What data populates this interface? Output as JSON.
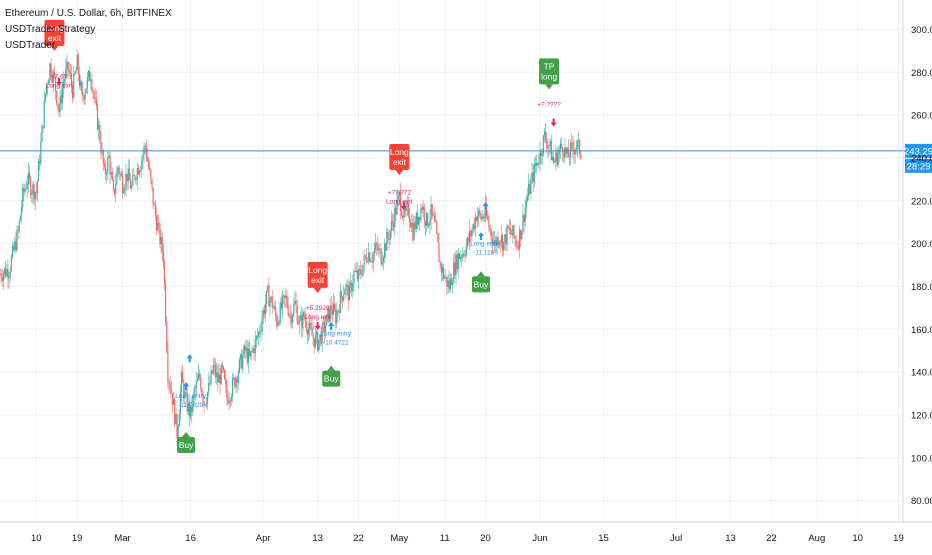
{
  "legend": {
    "symbol": "Ethereum / U.S. Dollar, 6h, BITFINEX",
    "strategy": "USDTrader Strategy",
    "indicator": "USDTrader"
  },
  "colors": {
    "up": "#26a69a",
    "down": "#ef5350",
    "price_line": "#2196f3",
    "buy_label": "#43a047",
    "exit_label": "#f44336",
    "entry_text": "#2196f3",
    "exit_text": "#e91e63",
    "grid": "#eef0f3",
    "axis_text": "#131722"
  },
  "price_labels": {
    "last_price": "243.29",
    "countdown": "28:29"
  },
  "chart_data": {
    "type": "candlestick",
    "y_axis": {
      "min": 70,
      "max": 310,
      "ticks": [
        "80.00",
        "100.00",
        "120.00",
        "140.00",
        "160.00",
        "180.00",
        "200.00",
        "220.00",
        "240.00",
        "260.00",
        "280.00",
        "300.00"
      ]
    },
    "x_axis": {
      "ticks": [
        {
          "label": "10",
          "t": 10
        },
        {
          "label": "19",
          "t": 19
        },
        {
          "label": "Mar",
          "t": 29
        },
        {
          "label": "16",
          "t": 44
        },
        {
          "label": "Apr",
          "t": 60
        },
        {
          "label": "13",
          "t": 72
        },
        {
          "label": "22",
          "t": 81
        },
        {
          "label": "May",
          "t": 90
        },
        {
          "label": "11",
          "t": 100
        },
        {
          "label": "20",
          "t": 109
        },
        {
          "label": "Jun",
          "t": 121
        },
        {
          "label": "15",
          "t": 135
        },
        {
          "label": "Jul",
          "t": 151
        },
        {
          "label": "13",
          "t": 163
        },
        {
          "label": "22",
          "t": 172
        },
        {
          "label": "Aug",
          "t": 182
        },
        {
          "label": "10",
          "t": 191
        },
        {
          "label": "19",
          "t": 200
        }
      ],
      "range": [
        2,
        201
      ]
    },
    "last_price": 243.29,
    "price_path": [
      [
        2,
        186
      ],
      [
        4,
        188
      ],
      [
        6,
        205
      ],
      [
        7,
        222
      ],
      [
        8,
        230
      ],
      [
        9,
        226
      ],
      [
        10,
        224
      ],
      [
        11,
        246
      ],
      [
        12,
        270
      ],
      [
        13,
        283
      ],
      [
        14,
        276
      ],
      [
        15,
        262
      ],
      [
        16,
        276
      ],
      [
        17,
        282
      ],
      [
        18,
        272
      ],
      [
        19,
        284
      ],
      [
        20,
        268
      ],
      [
        21,
        274
      ],
      [
        22,
        280
      ],
      [
        23,
        264
      ],
      [
        24,
        250
      ],
      [
        25,
        232
      ],
      [
        26,
        240
      ],
      [
        27,
        222
      ],
      [
        28,
        236
      ],
      [
        29,
        228
      ],
      [
        30,
        232
      ],
      [
        31,
        226
      ],
      [
        32,
        234
      ],
      [
        33,
        238
      ],
      [
        34,
        246
      ],
      [
        35,
        232
      ],
      [
        36,
        216
      ],
      [
        37,
        205
      ],
      [
        38,
        194
      ],
      [
        39,
        140
      ],
      [
        40,
        128
      ],
      [
        41,
        112
      ],
      [
        42,
        136
      ],
      [
        43,
        126
      ],
      [
        44,
        120
      ],
      [
        45,
        132
      ],
      [
        46,
        138
      ],
      [
        47,
        126
      ],
      [
        48,
        132
      ],
      [
        49,
        142
      ],
      [
        50,
        136
      ],
      [
        51,
        140
      ],
      [
        52,
        128
      ],
      [
        53,
        132
      ],
      [
        54,
        138
      ],
      [
        55,
        144
      ],
      [
        56,
        150
      ],
      [
        57,
        146
      ],
      [
        58,
        152
      ],
      [
        59,
        158
      ],
      [
        60,
        168
      ],
      [
        61,
        176
      ],
      [
        62,
        172
      ],
      [
        63,
        164
      ],
      [
        64,
        170
      ],
      [
        65,
        174
      ],
      [
        66,
        166
      ],
      [
        67,
        172
      ],
      [
        68,
        162
      ],
      [
        69,
        166
      ],
      [
        70,
        160
      ],
      [
        71,
        156
      ],
      [
        72,
        154
      ],
      [
        73,
        158
      ],
      [
        74,
        164
      ],
      [
        75,
        170
      ],
      [
        76,
        166
      ],
      [
        77,
        174
      ],
      [
        78,
        180
      ],
      [
        79,
        176
      ],
      [
        80,
        186
      ],
      [
        81,
        184
      ],
      [
        82,
        190
      ],
      [
        83,
        196
      ],
      [
        84,
        194
      ],
      [
        85,
        198
      ],
      [
        86,
        194
      ],
      [
        87,
        200
      ],
      [
        88,
        206
      ],
      [
        89,
        214
      ],
      [
        90,
        222
      ],
      [
        91,
        212
      ],
      [
        92,
        216
      ],
      [
        93,
        206
      ],
      [
        94,
        212
      ],
      [
        95,
        218
      ],
      [
        96,
        210
      ],
      [
        97,
        214
      ],
      [
        98,
        206
      ],
      [
        99,
        190
      ],
      [
        100,
        184
      ],
      [
        101,
        180
      ],
      [
        102,
        188
      ],
      [
        103,
        194
      ],
      [
        104,
        196
      ],
      [
        105,
        200
      ],
      [
        106,
        206
      ],
      [
        107,
        214
      ],
      [
        108,
        212
      ],
      [
        109,
        214
      ],
      [
        110,
        206
      ],
      [
        111,
        200
      ],
      [
        112,
        204
      ],
      [
        113,
        200
      ],
      [
        114,
        206
      ],
      [
        115,
        204
      ],
      [
        116,
        200
      ],
      [
        117,
        208
      ],
      [
        118,
        220
      ],
      [
        119,
        228
      ],
      [
        120,
        236
      ],
      [
        121,
        242
      ],
      [
        122,
        250
      ],
      [
        123,
        246
      ],
      [
        124,
        238
      ],
      [
        125,
        242
      ],
      [
        126,
        246
      ],
      [
        127,
        240
      ],
      [
        128,
        244
      ],
      [
        129,
        246
      ],
      [
        130,
        243
      ]
    ],
    "entry_arrows": [
      {
        "t": 43,
        "price": 133
      },
      {
        "t": 43.8,
        "price": 146
      },
      {
        "t": 75,
        "price": 161
      },
      {
        "t": 108,
        "price": 203
      },
      {
        "t": 109,
        "price": 217
      }
    ],
    "exit_arrows": [
      {
        "t": 15,
        "price": 276
      },
      {
        "t": 72,
        "price": 162
      },
      {
        "t": 91,
        "price": 218
      },
      {
        "t": 124,
        "price": 257
      }
    ],
    "signals": [
      {
        "type": "buy",
        "text": "Buy",
        "t": 43,
        "price": 112,
        "placement": "below"
      },
      {
        "type": "buy",
        "text": "Buy",
        "t": 75,
        "price": 143,
        "placement": "below"
      },
      {
        "type": "buy",
        "text": "Buy",
        "t": 108,
        "price": 187,
        "placement": "below"
      },
      {
        "type": "exit",
        "text": "Long exit",
        "t": 14,
        "price": 290,
        "placement": "above"
      },
      {
        "type": "exit",
        "text": "Long exit",
        "t": 72,
        "price": 177,
        "placement": "above"
      },
      {
        "type": "exit",
        "text": "Long exit",
        "t": 90,
        "price": 232,
        "placement": "above"
      },
      {
        "type": "tp",
        "text": "TP long",
        "t": 123,
        "price": 272,
        "placement": "above"
      }
    ],
    "annotations": [
      {
        "kind": "exit",
        "lines": [
          "+7.6?",
          "Long exit"
        ],
        "t": 15,
        "price": 277
      },
      {
        "kind": "exit",
        "lines": [
          "+5.2929",
          "Long exit"
        ],
        "t": 72,
        "price": 169
      },
      {
        "kind": "exit",
        "lines": [
          "+??.?72",
          "Long exit"
        ],
        "t": 90,
        "price": 223
      },
      {
        "kind": "exit",
        "lines": [
          "+?.????"
        ],
        "t": 123,
        "price": 264
      },
      {
        "kind": "entry",
        "lines": [
          "Long entry",
          "-11.7929"
        ],
        "t": 44,
        "price": 128
      },
      {
        "kind": "entry",
        "lines": [
          "Long entry",
          "-10.4722"
        ],
        "t": 76,
        "price": 157
      },
      {
        "kind": "entry",
        "lines": [
          "Long entry",
          "-11.1189"
        ],
        "t": 109,
        "price": 199
      }
    ]
  }
}
